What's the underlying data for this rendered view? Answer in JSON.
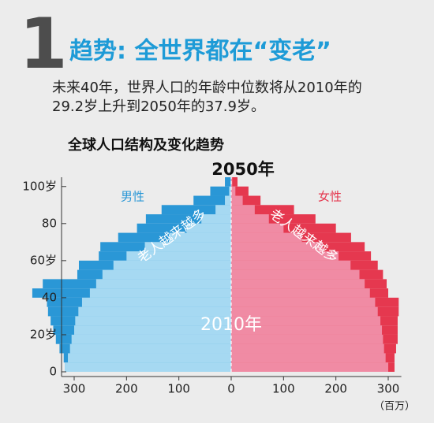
{
  "header": {
    "number": "1",
    "title": "趋势: 全世界都在“变老”",
    "subtitle_lines": [
      "未来40年，世界人口的年龄中位数将从2010年的",
      "29.2岁上升到2050年的37.9岁。"
    ]
  },
  "chart_data": {
    "type": "pyramid",
    "title": "全球人口结构及变化趋势",
    "years": [
      "2050年",
      "2010年"
    ],
    "bins": [
      0,
      5,
      10,
      15,
      20,
      25,
      30,
      35,
      40,
      45,
      50,
      55,
      60,
      65,
      70,
      75,
      80,
      85,
      90,
      95,
      100,
      105
    ],
    "series": [
      {
        "name": "男性",
        "colors": [
          "#2a97d6",
          "#a6d9f2"
        ],
        "values": [
          [
            318,
            320,
            328,
            335,
            340,
            345,
            350,
            352,
            380,
            360,
            294,
            291,
            253,
            250,
            216,
            180,
            163,
            133,
            72,
            40,
            12
          ],
          [
            318,
            312,
            308,
            305,
            300,
            298,
            292,
            285,
            270,
            258,
            246,
            225,
            200,
            165,
            118,
            85,
            57,
            30,
            12,
            4,
            1
          ]
        ]
      },
      {
        "name": "女性",
        "colors": [
          "#e5384f",
          "#f08ba4"
        ],
        "values": [
          [
            312,
            312,
            315,
            318,
            318,
            318,
            320,
            320,
            300,
            297,
            290,
            280,
            267,
            255,
            229,
            200,
            161,
            120,
            56,
            33,
            12
          ],
          [
            300,
            295,
            292,
            290,
            288,
            285,
            280,
            275,
            265,
            255,
            245,
            228,
            205,
            175,
            135,
            100,
            72,
            45,
            22,
            8,
            2
          ]
        ]
      }
    ],
    "annotations": [
      "老人越来越多",
      "老人越来越多"
    ],
    "x_unit": "（百万）",
    "xlim": [
      -325,
      325
    ],
    "xticks": [
      {
        "value": -300,
        "label": "300"
      },
      {
        "value": -200,
        "label": "200"
      },
      {
        "value": -100,
        "label": "100"
      },
      0,
      100,
      200,
      300
    ],
    "ylim": [
      0,
      105
    ],
    "yticks": [
      0,
      {
        "value": 20,
        "label": "20岁"
      },
      40,
      {
        "value": 60,
        "label": "60岁"
      },
      80,
      {
        "value": 100,
        "label": "100岁"
      }
    ]
  }
}
